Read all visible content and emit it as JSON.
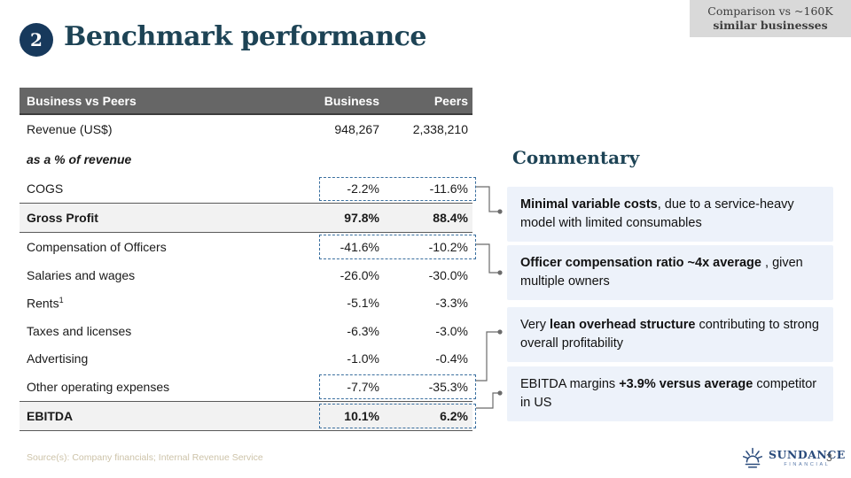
{
  "header": {
    "badge": "2",
    "title": "Benchmark performance",
    "context_line1": "Comparison vs ~160K",
    "context_line2": "similar businesses"
  },
  "table": {
    "title": "Business vs Peers",
    "col_business": "Business",
    "col_peers": "Peers",
    "rows": [
      {
        "label": "Revenue (US$)",
        "business": "948,267",
        "peers": "2,338,210",
        "style": "plain",
        "highlighted": false
      },
      {
        "label": "as a % of revenue",
        "business": "",
        "peers": "",
        "style": "section",
        "highlighted": false
      },
      {
        "label": "COGS",
        "business": "-2.2%",
        "peers": "-11.6%",
        "style": "plain",
        "highlighted": true
      },
      {
        "label": "Gross Profit",
        "business": "97.8%",
        "peers": "88.4%",
        "style": "total",
        "highlighted": false
      },
      {
        "label": "Compensation of Officers",
        "business": "-41.6%",
        "peers": "-10.2%",
        "style": "plain",
        "highlighted": true
      },
      {
        "label": "Salaries and wages",
        "business": "-26.0%",
        "peers": "-30.0%",
        "style": "plain",
        "highlighted": false
      },
      {
        "label": "Rents",
        "label_sup": "1",
        "business": "-5.1%",
        "peers": "-3.3%",
        "style": "plain",
        "highlighted": false
      },
      {
        "label": "Taxes and licenses",
        "business": "-6.3%",
        "peers": "-3.0%",
        "style": "plain",
        "highlighted": false
      },
      {
        "label": "Advertising",
        "business": "-1.0%",
        "peers": "-0.4%",
        "style": "plain",
        "highlighted": false
      },
      {
        "label": "Other operating expenses",
        "business": "-7.7%",
        "peers": "-35.3%",
        "style": "plain",
        "highlighted": true
      },
      {
        "label": "EBITDA",
        "business": "10.1%",
        "peers": "6.2%",
        "style": "total",
        "highlighted": true
      }
    ]
  },
  "commentary": {
    "heading": "Commentary",
    "notes": [
      {
        "segments": [
          {
            "text": "Minimal variable costs",
            "bold": true
          },
          {
            "text": ", due to a service-heavy model with limited consumables",
            "bold": false
          }
        ]
      },
      {
        "segments": [
          {
            "text": "Officer compensation ratio ~4x average ",
            "bold": true
          },
          {
            "text": ", given multiple owners",
            "bold": false
          }
        ]
      },
      {
        "segments": [
          {
            "text": "Very ",
            "bold": false
          },
          {
            "text": "lean overhead structure",
            "bold": true
          },
          {
            "text": " contributing to strong overall profitability",
            "bold": false
          }
        ]
      },
      {
        "segments": [
          {
            "text": "EBITDA margins ",
            "bold": false
          },
          {
            "text": "+3.9% versus average",
            "bold": true
          },
          {
            "text": " competitor in US",
            "bold": false
          }
        ]
      }
    ]
  },
  "footer": {
    "source": "Source(s): Company financials; Internal Revenue Service",
    "logo_name": "SUNDANCE",
    "logo_sub": "FINANCIAL",
    "page": "3"
  },
  "colors": {
    "accent_navy": "#1d4355",
    "table_header_gray": "#666666",
    "highlight_dash_blue": "#3a6f9f",
    "note_background": "#edf2fa"
  }
}
